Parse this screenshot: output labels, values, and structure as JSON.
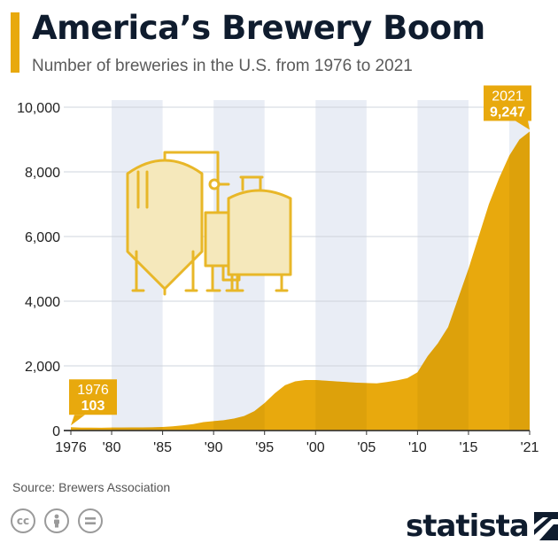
{
  "header": {
    "title": "America’s Brewery Boom",
    "subtitle": "Number of breweries in the U.S. from 1976 to 2021"
  },
  "footer": {
    "source": "Source: Brewers Association",
    "brand": "statista",
    "license_icons": [
      "cc-icon",
      "attribution-icon",
      "no-derivatives-icon"
    ]
  },
  "colors": {
    "area": "#e8a90d",
    "band": "#e9edf5",
    "illustration_fill": "#f5e8bb",
    "illustration_stroke": "#e8b728",
    "title": "#0f1c2e"
  },
  "chart_data": {
    "type": "area",
    "title": "America’s Brewery Boom",
    "subtitle": "Number of breweries in the U.S. from 1976 to 2021",
    "xlim": [
      1976,
      2021
    ],
    "ylim": [
      0,
      10000
    ],
    "y_ticks": [
      0,
      2000,
      4000,
      6000,
      8000,
      10000
    ],
    "y_tick_labels": [
      "0",
      "2,000",
      "4,000",
      "6,000",
      "8,000",
      "10,000"
    ],
    "x_ticks": [
      1976,
      1980,
      1985,
      1990,
      1995,
      2000,
      2005,
      2010,
      2015,
      2021
    ],
    "x_tick_labels": [
      "1976",
      "'80",
      "'85",
      "'90",
      "'95",
      "'00",
      "'05",
      "'10",
      "'15",
      "'21"
    ],
    "grid": true,
    "shaded_bands": [
      [
        1980,
        1985
      ],
      [
        1990,
        1995
      ],
      [
        2000,
        2005
      ],
      [
        2010,
        2015
      ],
      [
        2019,
        2021
      ]
    ],
    "series": [
      {
        "x": [
          1976,
          1977,
          1978,
          1979,
          1980,
          1981,
          1982,
          1983,
          1984,
          1985,
          1986,
          1987,
          1988,
          1989,
          1990,
          1991,
          1992,
          1993,
          1994,
          1995,
          1996,
          1997,
          1998,
          1999,
          2000,
          2001,
          2002,
          2003,
          2004,
          2005,
          2006,
          2007,
          2008,
          2009,
          2010,
          2011,
          2012,
          2013,
          2014,
          2015,
          2016,
          2017,
          2018,
          2019,
          2020,
          2021
        ],
        "values": [
          103,
          90,
          89,
          86,
          92,
          93,
          95,
          95,
          98,
          110,
          130,
          160,
          200,
          260,
          290,
          320,
          370,
          450,
          600,
          850,
          1150,
          1400,
          1520,
          1560,
          1560,
          1540,
          1520,
          1500,
          1480,
          1470,
          1460,
          1500,
          1550,
          1620,
          1800,
          2300,
          2700,
          3200,
          4100,
          5000,
          6000,
          7000,
          7800,
          8500,
          9000,
          9247
        ]
      }
    ],
    "annotations": [
      {
        "year": "1976",
        "value": "103"
      },
      {
        "year": "2021",
        "value": "9,247"
      }
    ]
  }
}
